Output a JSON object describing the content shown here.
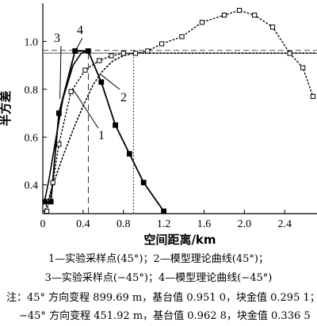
{
  "chart_data": {
    "type": "line",
    "ylabel": "半方差",
    "xlabel": "空间距离/km",
    "xlim": [
      0,
      2.72
    ],
    "ylim": [
      0.28,
      1.16
    ],
    "xticks": [
      0,
      0.4,
      0.8,
      1.2,
      1.6,
      2.0,
      2.4
    ],
    "xtick_labels": [
      "0",
      "0.4",
      "0.8",
      "1.2",
      "1.6",
      "2.0",
      "2.4"
    ],
    "yticks": [
      0.4,
      0.6,
      0.8,
      1.0
    ],
    "ytick_labels": [
      "0.4",
      "0.6",
      "0.8",
      "1.0"
    ],
    "grid": false,
    "series": [
      {
        "name": "1",
        "style": "open-square-markers",
        "x": [
          0.04,
          0.1,
          0.16,
          0.28,
          0.42,
          0.56,
          0.68,
          0.8,
          0.92,
          1.04,
          1.18,
          1.38,
          1.58,
          1.8,
          1.95,
          2.1,
          2.28,
          2.45,
          2.58,
          2.68
        ],
        "y": [
          0.29,
          0.41,
          0.57,
          0.79,
          0.88,
          0.92,
          0.94,
          0.95,
          0.95,
          0.96,
          0.99,
          1.02,
          1.08,
          1.11,
          1.13,
          1.11,
          1.06,
          0.95,
          0.89,
          0.77
        ]
      },
      {
        "name": "2",
        "style": "dotted",
        "x": [
          0,
          0.02,
          0.1,
          0.2,
          0.3,
          0.4,
          0.5,
          0.6,
          0.7,
          0.8,
          0.8997,
          2.72
        ],
        "y": [
          0.29,
          0.29,
          0.4,
          0.52,
          0.63,
          0.73,
          0.82,
          0.88,
          0.92,
          0.94,
          0.951,
          0.951
        ]
      },
      {
        "name": "3",
        "style": "solid-filled-squares",
        "x": [
          0.02,
          0.08,
          0.16,
          0.32,
          0.45,
          0.58,
          0.72,
          0.86,
          1.0,
          1.2
        ],
        "y": [
          0.33,
          0.33,
          0.7,
          0.96,
          0.96,
          0.83,
          0.65,
          0.53,
          0.41,
          0.29
        ]
      },
      {
        "name": "4",
        "style": "solid",
        "x": [
          0,
          0.02,
          0.06,
          0.12,
          0.2,
          0.3,
          0.38,
          0.4519
        ],
        "y": [
          0.3365,
          0.3365,
          0.42,
          0.57,
          0.76,
          0.9,
          0.95,
          0.9628
        ]
      }
    ],
    "reference_lines": {
      "horizontal": [
        0.951,
        0.9628
      ],
      "vertical": [
        0.4519,
        0.8997
      ]
    },
    "caption": [
      "1—实验采样点(45°)；2—模型理论曲线(45°)；",
      "3—实验采样点(−45°)；4—模型理论曲线(−45°)"
    ],
    "notes": [
      "注：45° 方向变程 899.69 m，基台值 0.951 0，块金值 0.295 1；",
      "−45° 方向变程 451.92 m，基台值 0.962 8，块金值 0.336 5"
    ]
  }
}
